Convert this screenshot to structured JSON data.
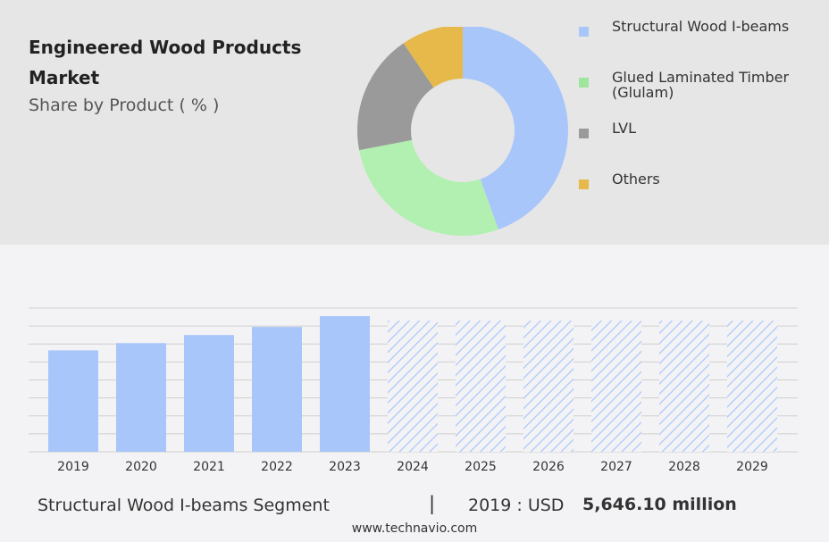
{
  "header": {
    "title": "Engineered Wood Products Market",
    "subtitle": "Share by Product ( % )"
  },
  "legend": {
    "items": [
      {
        "label": "Structural Wood I-beams",
        "color": "#a9c6fb"
      },
      {
        "label": "Glued Laminated Timber (Glulam)",
        "color": "#b1f0b1"
      },
      {
        "label": "LVL",
        "color": "#9a9a9a"
      },
      {
        "label": "Others",
        "color": "#e6b94a"
      }
    ]
  },
  "footer": {
    "segment": "Structural Wood I-beams Segment",
    "divider": "|",
    "year_label": "2019 : USD",
    "value_label": "5,646.10 million"
  },
  "source": "www.technavio.com",
  "chart_data": [
    {
      "type": "pie",
      "title": "",
      "categories": [
        "Structural Wood I-beams",
        "Glued Laminated Timber (Glulam)",
        "LVL",
        "Others"
      ],
      "values": [
        44.5,
        27.5,
        18.5,
        9.5
      ],
      "colors": [
        "#a9c6fb",
        "#b1f0b1",
        "#9a9a9a",
        "#e6b94a"
      ],
      "legend_position": "right"
    },
    {
      "type": "bar",
      "title": "",
      "categories": [
        "2019",
        "2020",
        "2021",
        "2022",
        "2023",
        "2024",
        "2025",
        "2026",
        "2027",
        "2028",
        "2029"
      ],
      "values": [
        5646.1,
        6050,
        6500,
        6950,
        7550,
        null,
        null,
        null,
        null,
        null,
        null
      ],
      "forecast_years": [
        "2024",
        "2025",
        "2026",
        "2027",
        "2028",
        "2029"
      ],
      "ylim": [
        0,
        8000
      ],
      "grid": true,
      "color": "#a9c6fb"
    }
  ]
}
